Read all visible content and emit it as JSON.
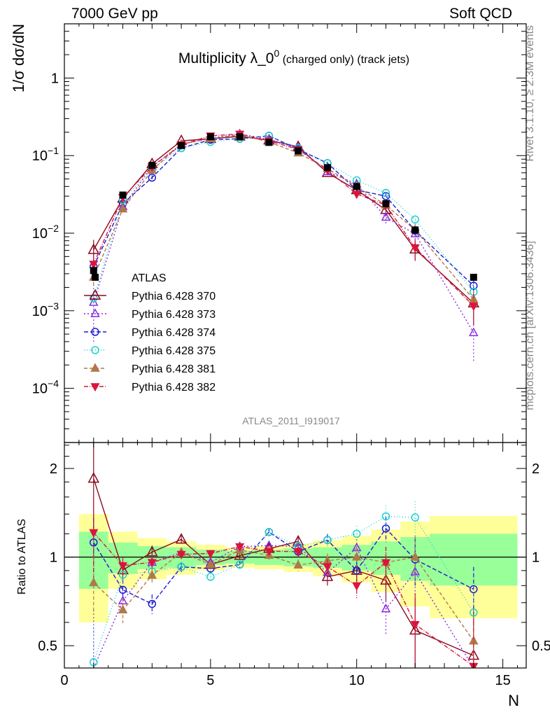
{
  "header": {
    "left_label": "7000 GeV pp",
    "right_label": "Soft QCD"
  },
  "side_labels": {
    "rivet": "Rivet 3.1.10, ≥ 2.3M events",
    "mcplots": "mcplots.cern.ch [arXiv:1306.3436]"
  },
  "chart_data": {
    "type": "line",
    "title_main": "Multiplicity λ_0",
    "title_sup": "0",
    "title_small": " (charged only) (track jets)",
    "analysis_label": "ATLAS_2011_I919017",
    "ylabel": "1/σ dσ/dN",
    "ratio_ylabel": "Ratio to ATLAS",
    "xlabel": "N",
    "xlim": [
      0,
      15.8
    ],
    "ylim": [
      2e-05,
      5
    ],
    "yscale": "log",
    "ratio_ylim": [
      0.42,
      2.45
    ],
    "ratio_yscale": "log",
    "x_ticks": [
      0,
      5,
      10,
      15
    ],
    "y_ticks": [
      {
        "value": 0.0001,
        "base": "10",
        "exp": "−4"
      },
      {
        "value": 0.001,
        "base": "10",
        "exp": "−3"
      },
      {
        "value": 0.01,
        "base": "10",
        "exp": "−2"
      },
      {
        "value": 0.1,
        "base": "10",
        "exp": "−1"
      },
      {
        "value": 1,
        "base": "1",
        "exp": ""
      }
    ],
    "ratio_ticks": [
      {
        "value": 0.5,
        "label": "0.5"
      },
      {
        "value": 1,
        "label": "1"
      },
      {
        "value": 2,
        "label": "2"
      }
    ],
    "reference": {
      "name": "ATLAS",
      "color": "#000000",
      "x": [
        1,
        2,
        3,
        4,
        5,
        6,
        7,
        8,
        9,
        10,
        11,
        12,
        14
      ],
      "y": [
        0.0033,
        0.031,
        0.075,
        0.135,
        0.175,
        0.175,
        0.148,
        0.115,
        0.07,
        0.04,
        0.024,
        0.011,
        0.0027
      ],
      "band_edges": [
        0.5,
        1.5,
        2.5,
        3.5,
        4.5,
        5.5,
        6.5,
        7.5,
        8.5,
        9.5,
        10.5,
        11.5,
        12.5,
        15.5
      ],
      "band_inner": [
        0.22,
        0.12,
        0.09,
        0.08,
        0.06,
        0.05,
        0.06,
        0.07,
        0.08,
        0.1,
        0.13,
        0.17,
        0.2
      ],
      "band_outer": [
        0.4,
        0.22,
        0.16,
        0.13,
        0.1,
        0.08,
        0.09,
        0.11,
        0.14,
        0.18,
        0.24,
        0.32,
        0.38
      ]
    },
    "series": [
      {
        "name": "Pythia 6.428 370",
        "color": "#8b0a1e",
        "marker": "triangle-up-open",
        "dash": "",
        "marker_size": 7,
        "x": [
          1,
          2,
          3,
          4,
          5,
          6,
          7,
          8,
          9,
          10,
          11,
          12,
          14
        ],
        "y": [
          0.0061,
          0.028,
          0.078,
          0.155,
          0.165,
          0.177,
          0.158,
          0.13,
          0.06,
          0.036,
          0.02,
          0.0062,
          0.00125
        ],
        "err": [
          0.0021,
          0.002,
          0.004,
          0.005,
          0.005,
          0.005,
          0.005,
          0.005,
          0.004,
          0.003,
          0.003,
          0.0018,
          0.0006
        ]
      },
      {
        "name": "Pythia 6.428 373",
        "color": "#8a2be2",
        "marker": "triangle-up-open",
        "dash": "2,3",
        "marker_size": 5.5,
        "x": [
          1,
          2,
          3,
          4,
          5,
          6,
          7,
          8,
          9,
          10,
          11,
          12,
          14
        ],
        "y": [
          0.00128,
          0.022,
          0.072,
          0.14,
          0.168,
          0.19,
          0.162,
          0.125,
          0.062,
          0.043,
          0.016,
          0.0098,
          0.00052
        ],
        "err": [
          0.0009,
          0.002,
          0.004,
          0.005,
          0.005,
          0.005,
          0.005,
          0.005,
          0.004,
          0.003,
          0.003,
          0.002,
          0.0003
        ]
      },
      {
        "name": "Pythia 6.428 374",
        "color": "#1c1cd4",
        "marker": "circle-open",
        "dash": "6,3",
        "marker_size": 5,
        "x": [
          1,
          2,
          3,
          4,
          5,
          6,
          7,
          8,
          9,
          10,
          11,
          12,
          14
        ],
        "y": [
          0.0037,
          0.024,
          0.052,
          0.125,
          0.16,
          0.165,
          0.18,
          0.12,
          0.08,
          0.036,
          0.03,
          0.0108,
          0.0021
        ],
        "err": [
          0.0008,
          0.002,
          0.004,
          0.005,
          0.005,
          0.005,
          0.005,
          0.005,
          0.004,
          0.003,
          0.003,
          0.002,
          0.0004
        ]
      },
      {
        "name": "Pythia 6.428 375",
        "color": "#1ecfcf",
        "marker": "circle-open",
        "dash": "1,3",
        "marker_size": 5,
        "x": [
          1,
          2,
          3,
          4,
          5,
          6,
          7,
          8,
          9,
          10,
          11,
          12,
          14
        ],
        "y": [
          0.00145,
          0.027,
          0.067,
          0.125,
          0.15,
          0.165,
          0.18,
          0.125,
          0.08,
          0.048,
          0.033,
          0.015,
          0.00175
        ],
        "err": [
          0.0005,
          0.002,
          0.004,
          0.005,
          0.005,
          0.005,
          0.005,
          0.005,
          0.004,
          0.003,
          0.003,
          0.002,
          0.0004
        ]
      },
      {
        "name": "Pythia 6.428 381",
        "color": "#b0794a",
        "marker": "triangle-up-filled",
        "dash": "5,3",
        "marker_size": 5.5,
        "x": [
          1,
          2,
          3,
          4,
          5,
          6,
          7,
          8,
          9,
          10,
          11,
          12,
          14
        ],
        "y": [
          0.0027,
          0.0205,
          0.065,
          0.14,
          0.165,
          0.185,
          0.15,
          0.108,
          0.068,
          0.04,
          0.023,
          0.011,
          0.0014
        ],
        "err": [
          0.0006,
          0.002,
          0.004,
          0.005,
          0.005,
          0.005,
          0.005,
          0.005,
          0.004,
          0.003,
          0.003,
          0.002,
          0.0004
        ]
      },
      {
        "name": "Pythia 6.428 382",
        "color": "#dc143c",
        "marker": "triangle-down-filled",
        "dash": "6,2,1,2",
        "marker_size": 5.5,
        "x": [
          1,
          2,
          3,
          4,
          5,
          6,
          7,
          8,
          9,
          10,
          11,
          12,
          14
        ],
        "y": [
          0.004,
          0.029,
          0.072,
          0.138,
          0.18,
          0.19,
          0.155,
          0.12,
          0.065,
          0.032,
          0.023,
          0.0065,
          0.00115
        ],
        "err": [
          0.0012,
          0.002,
          0.004,
          0.005,
          0.005,
          0.005,
          0.005,
          0.005,
          0.004,
          0.003,
          0.003,
          0.0018,
          0.0005
        ]
      }
    ]
  }
}
